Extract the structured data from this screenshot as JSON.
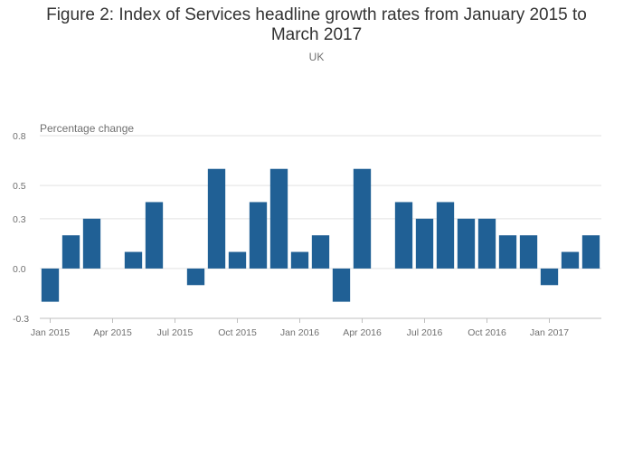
{
  "title_line1": "Figure 2: Index of Services headline growth rates from January 2015 to",
  "title_line2": "March 2017",
  "subtitle": "UK",
  "colors": {
    "bar": "#206095",
    "grid": "#e2e2e2",
    "axis": "#bfbfbf",
    "text": "#707070"
  },
  "chart_data": {
    "type": "bar",
    "ylabel": "Percentage change",
    "ylim": [
      -0.3,
      0.8
    ],
    "yticks": [
      {
        "value": 0.8,
        "label": "0.8"
      },
      {
        "value": 0.5,
        "label": "0.5"
      },
      {
        "value": 0.3,
        "label": "0.3"
      },
      {
        "value": 0.0,
        "label": "0.0"
      },
      {
        "value": -0.3,
        "label": "-0.3"
      }
    ],
    "xticks": [
      {
        "index": 0,
        "label": "Jan 2015"
      },
      {
        "index": 3,
        "label": "Apr 2015"
      },
      {
        "index": 6,
        "label": "Jul 2015"
      },
      {
        "index": 9,
        "label": "Oct 2015"
      },
      {
        "index": 12,
        "label": "Jan 2016"
      },
      {
        "index": 15,
        "label": "Apr 2016"
      },
      {
        "index": 18,
        "label": "Jul 2016"
      },
      {
        "index": 21,
        "label": "Oct 2016"
      },
      {
        "index": 24,
        "label": "Jan 2017"
      }
    ],
    "categories": [
      "Jan 2015",
      "Feb 2015",
      "Mar 2015",
      "Apr 2015",
      "May 2015",
      "Jun 2015",
      "Jul 2015",
      "Aug 2015",
      "Sep 2015",
      "Oct 2015",
      "Nov 2015",
      "Dec 2015",
      "Jan 2016",
      "Feb 2016",
      "Mar 2016",
      "Apr 2016",
      "May 2016",
      "Jun 2016",
      "Jul 2016",
      "Aug 2016",
      "Sep 2016",
      "Oct 2016",
      "Nov 2016",
      "Dec 2016",
      "Jan 2017",
      "Feb 2017",
      "Mar 2017"
    ],
    "values": [
      -0.2,
      0.2,
      0.3,
      0.0,
      0.1,
      0.4,
      0.0,
      -0.1,
      0.6,
      0.1,
      0.4,
      0.6,
      0.1,
      0.2,
      -0.2,
      0.6,
      0.0,
      0.4,
      0.3,
      0.4,
      0.3,
      0.3,
      0.2,
      0.2,
      -0.1,
      0.1,
      0.2
    ],
    "grid": true,
    "legend": "none"
  }
}
